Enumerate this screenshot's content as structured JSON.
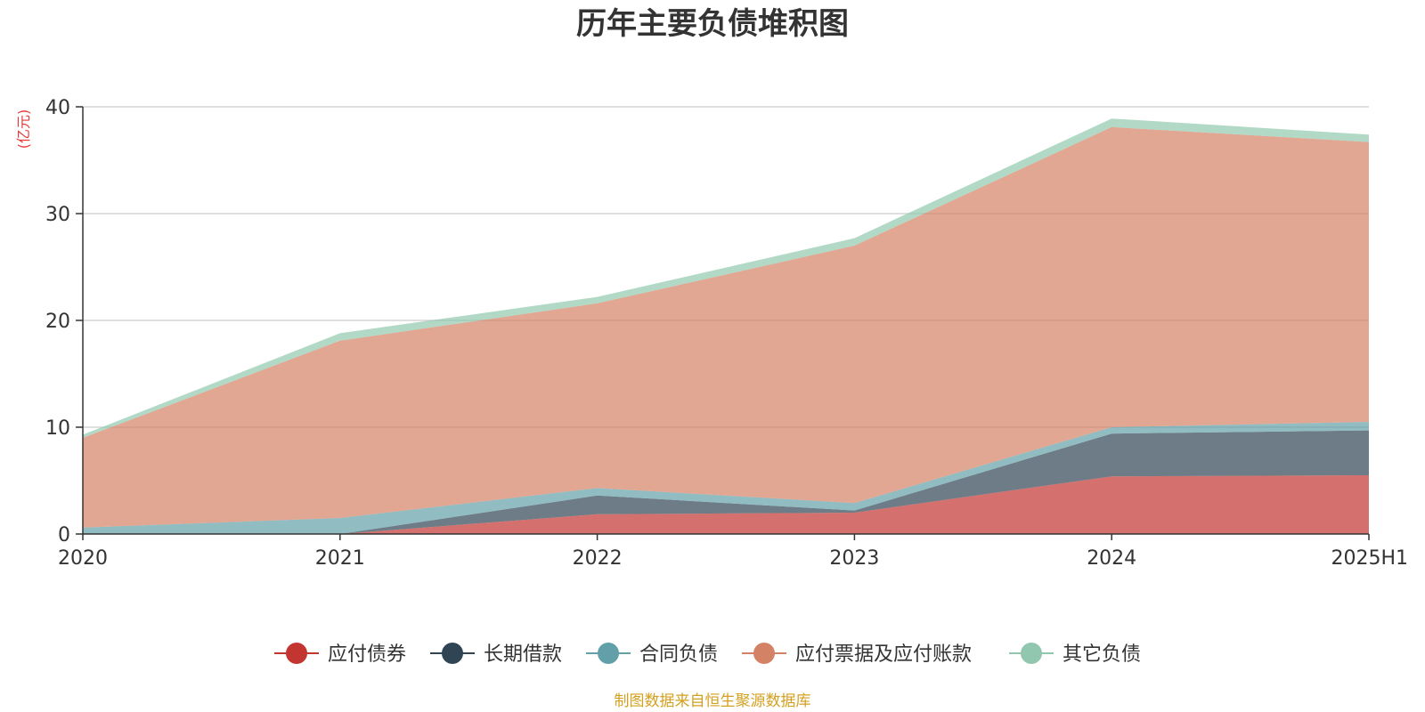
{
  "chart_data": {
    "type": "area",
    "stacked": true,
    "title": "历年主要负债堆积图",
    "ylabel": "(亿元)",
    "xlabel": "",
    "x": [
      "2020",
      "2021",
      "2022",
      "2023",
      "2024",
      "2025H1"
    ],
    "ylim": [
      0,
      40
    ],
    "yticks": [
      0,
      10,
      20,
      30,
      40
    ],
    "grid": true,
    "legend_position": "bottom",
    "series": [
      {
        "name": "应付债券",
        "color": "#c23531",
        "values": [
          0.0,
          0.0,
          1.85,
          2.0,
          5.4,
          5.5
        ]
      },
      {
        "name": "长期借款",
        "color": "#2f4554",
        "values": [
          0.0,
          0.0,
          1.75,
          0.2,
          4.0,
          4.2
        ]
      },
      {
        "name": "合同负债",
        "color": "#61a0a8",
        "values": [
          0.6,
          1.5,
          0.7,
          0.7,
          0.6,
          0.8
        ]
      },
      {
        "name": "应付票据及应付账款",
        "color": "#d48265",
        "values": [
          8.4,
          16.6,
          17.3,
          24.1,
          28.1,
          26.2
        ]
      },
      {
        "name": "其它负债",
        "color": "#91c7ae",
        "values": [
          0.3,
          0.7,
          0.6,
          0.7,
          0.8,
          0.7
        ]
      }
    ]
  },
  "footer": {
    "source": "制图数据来自恒生聚源数据库"
  }
}
